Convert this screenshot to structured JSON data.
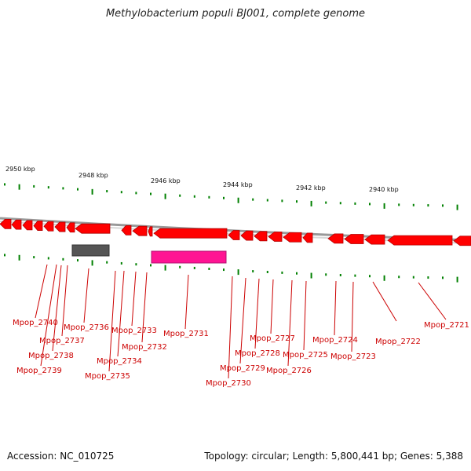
{
  "title": "Methylobacterium populi BJ001, complete genome",
  "footer": {
    "accession": "Accession: NC_010725",
    "topology": "Topology: circular; Length: 5,800,441 bp; Genes: 5,388"
  },
  "kbp_labels": [
    "2950 kbp",
    "2948 kbp",
    "2946 kbp",
    "2944 kbp",
    "2942 kbp",
    "2940 kbp"
  ],
  "colors": {
    "gene": "#ff0000",
    "highlight": "#ff1493",
    "rna": "#555555",
    "backbone": "#999999",
    "tick": "#008000",
    "label": "#cc0000"
  },
  "genes": [
    "Mpop_2740",
    "Mpop_2739",
    "Mpop_2738",
    "Mpop_2737",
    "Mpop_2736",
    "Mpop_2735",
    "Mpop_2734",
    "Mpop_2733",
    "Mpop_2732",
    "Mpop_2731",
    "Mpop_2730",
    "Mpop_2729",
    "Mpop_2728",
    "Mpop_2727",
    "Mpop_2726",
    "Mpop_2725",
    "Mpop_2724",
    "Mpop_2723",
    "Mpop_2722",
    "Mpop_2721"
  ]
}
